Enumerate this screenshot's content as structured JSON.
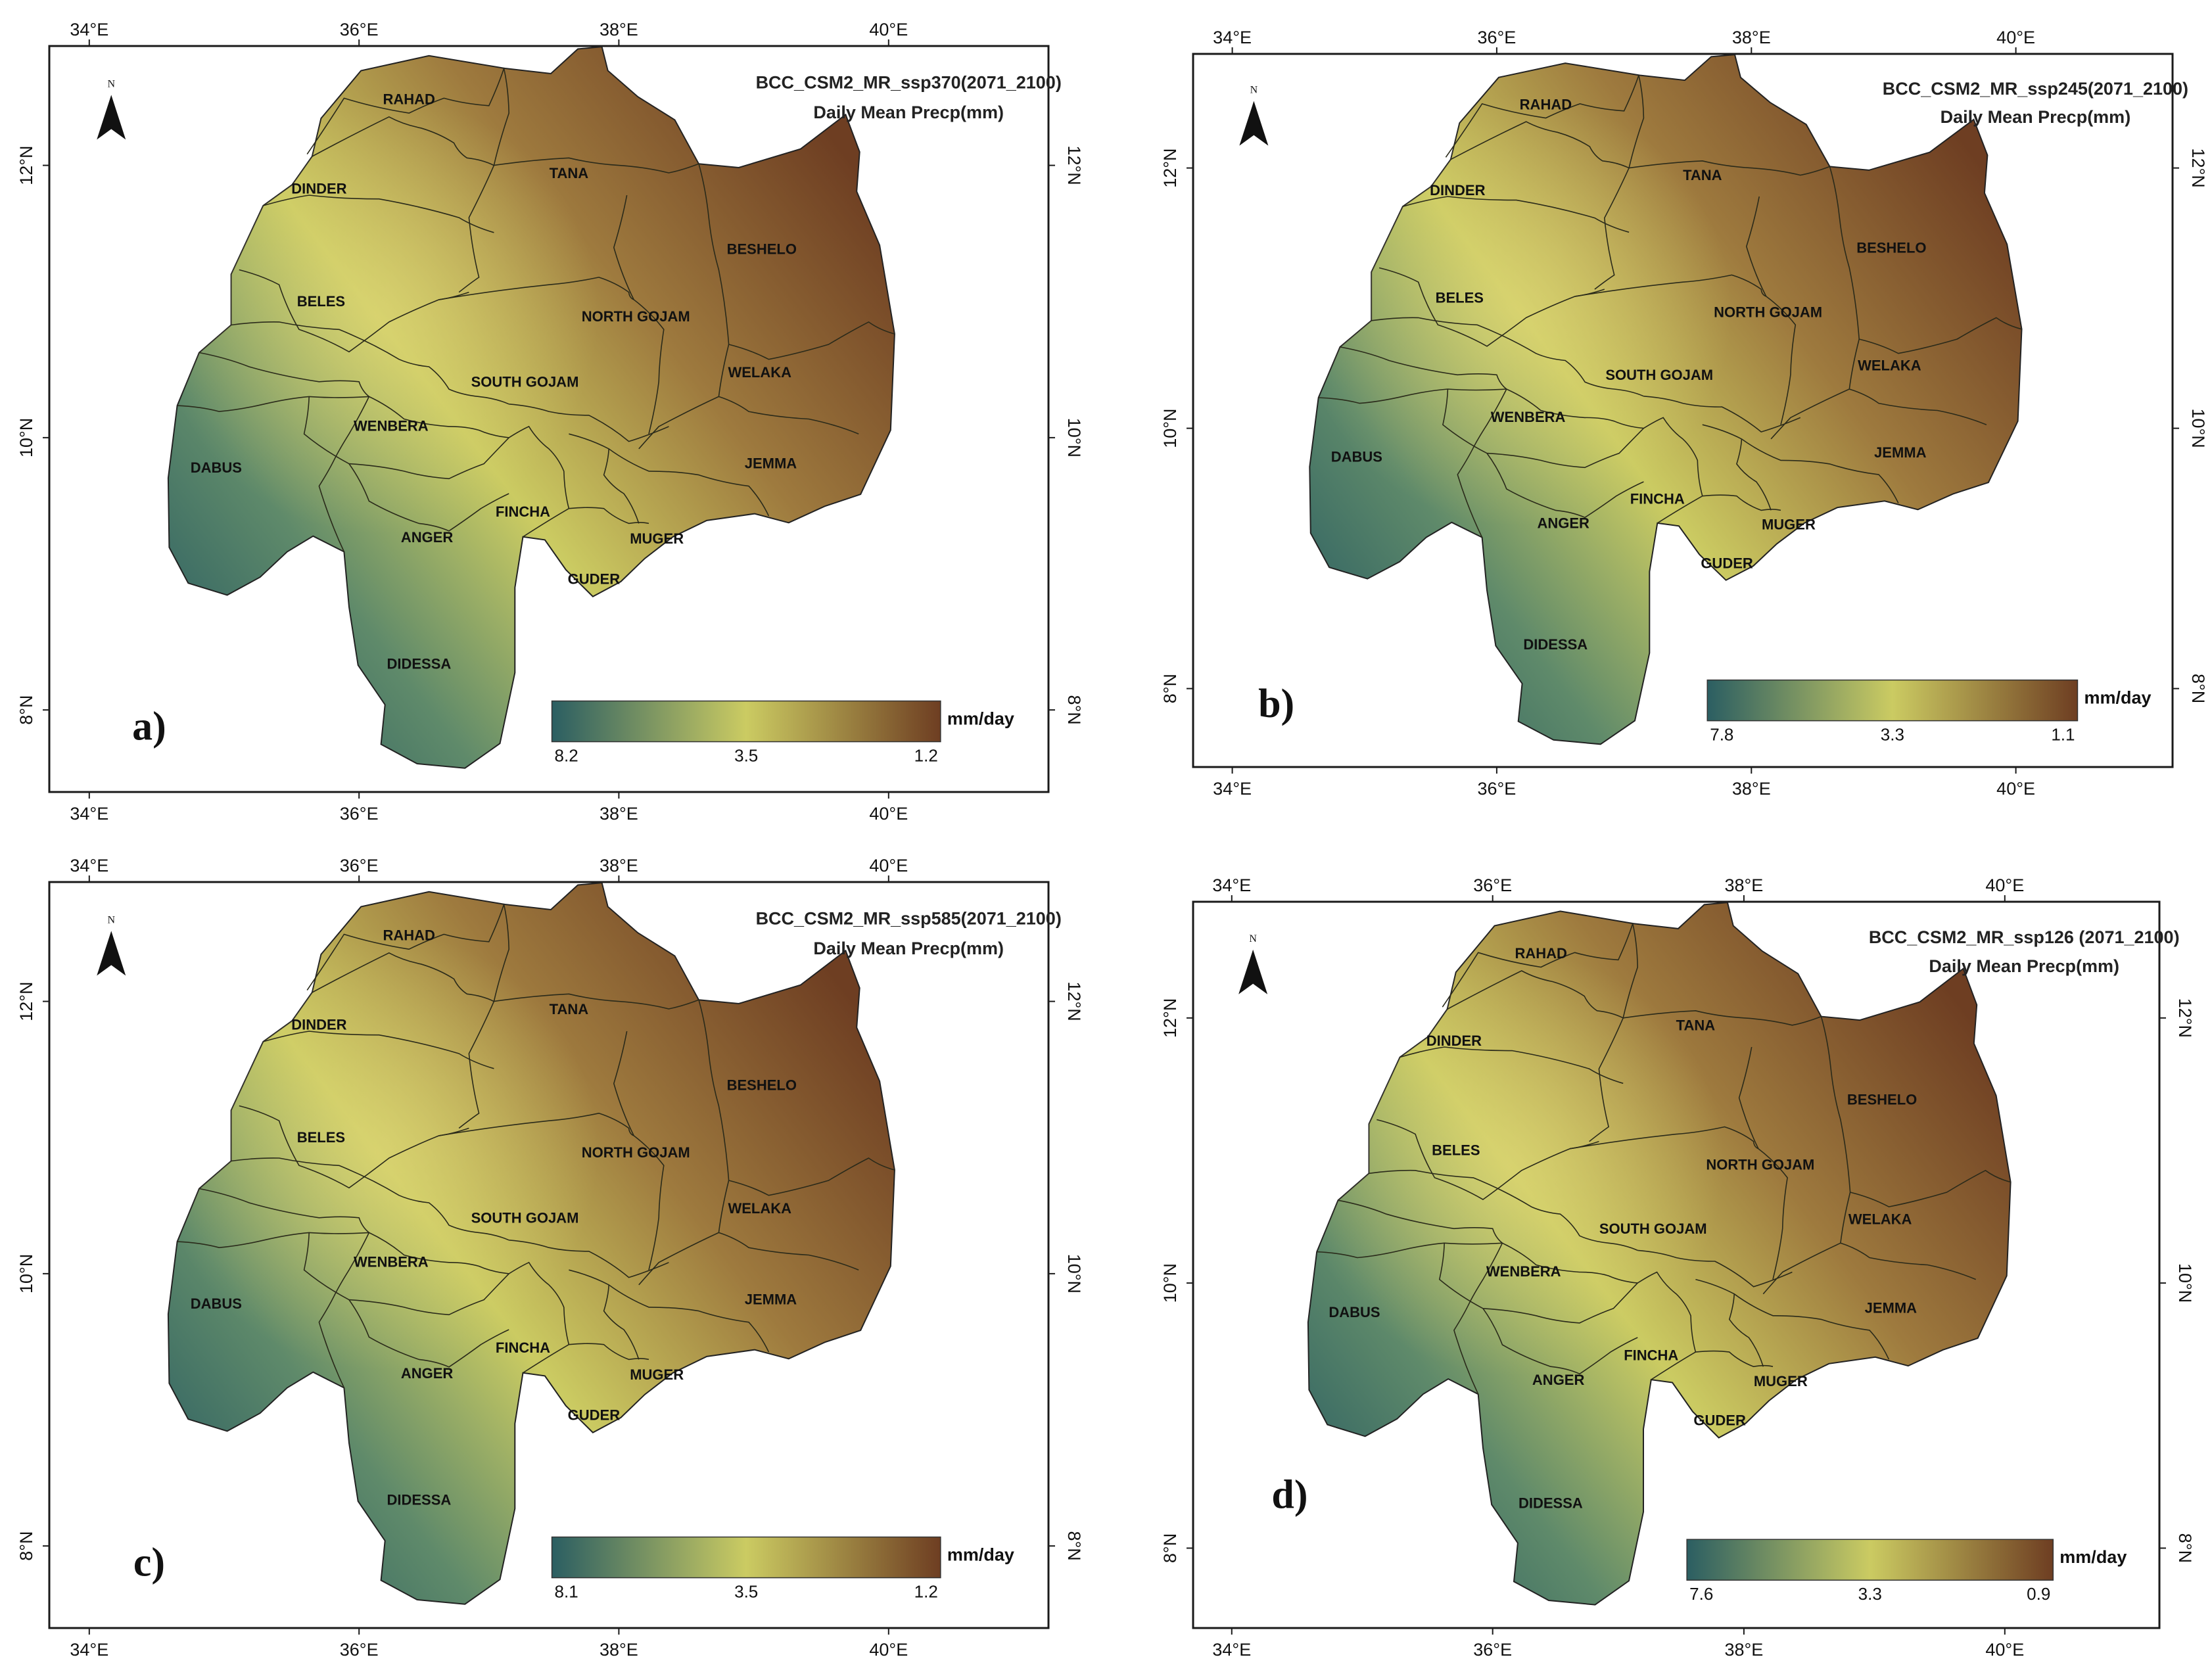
{
  "panels": [
    {
      "id": "a",
      "letter": "a)",
      "title_line1": "BCC_CSM2_MR_ssp370(2071_2100)",
      "title_line2": "Daily Mean Precp(mm)",
      "legend": {
        "min_label": "8.2",
        "mid_label": "3.5",
        "max_label": "1.2",
        "unit": "mm/day"
      },
      "ticks_lon": [
        "34°E",
        "36°E",
        "38°E",
        "40°E"
      ],
      "ticks_lat": [
        "12°N",
        "10°N",
        "8°N"
      ],
      "north_label": "N"
    },
    {
      "id": "b",
      "letter": "b)",
      "title_line1": "BCC_CSM2_MR_ssp245(2071_2100)",
      "title_line2": "Daily Mean Precp(mm)",
      "legend": {
        "min_label": "7.8",
        "mid_label": "3.3",
        "max_label": "1.1",
        "unit": "mm/day"
      },
      "ticks_lon": [
        "34°E",
        "36°E",
        "38°E",
        "40°E"
      ],
      "ticks_lat": [
        "12°N",
        "10°N",
        "8°N"
      ],
      "north_label": "N"
    },
    {
      "id": "c",
      "letter": "c)",
      "title_line1": "BCC_CSM2_MR_ssp585(2071_2100)",
      "title_line2": "Daily Mean Precp(mm)",
      "legend": {
        "min_label": "8.1",
        "mid_label": "3.5",
        "max_label": "1.2",
        "unit": "mm/day"
      },
      "ticks_lon": [
        "34°E",
        "36°E",
        "38°E",
        "40°E"
      ],
      "ticks_lat": [
        "12°N",
        "10°N",
        "8°N"
      ],
      "north_label": "N"
    },
    {
      "id": "d",
      "letter": "d)",
      "title_line1": "BCC_CSM2_MR_ssp126 (2071_2100)",
      "title_line2": "Daily Mean Precp(mm)",
      "legend": {
        "min_label": "7.6",
        "mid_label": "3.3",
        "max_label": "0.9",
        "unit": "mm/day"
      },
      "ticks_lon": [
        "34°E",
        "36°E",
        "38°E",
        "40°E"
      ],
      "ticks_lat": [
        "12°N",
        "10°N",
        "8°N"
      ],
      "north_label": "N"
    }
  ],
  "subbasins": [
    "RAHAD",
    "DINDER",
    "TANA",
    "BESHELO",
    "BELES",
    "NORTH GOJAM",
    "SOUTH GOJAM",
    "WELAKA",
    "WENBERA",
    "DABUS",
    "JEMMA",
    "FINCHA",
    "ANGER",
    "MUGER",
    "GUDER",
    "DIDESSA"
  ],
  "colors": {
    "wet": "#2b5e62",
    "mid": "#cbcb62",
    "dry": "#6e3e22",
    "frame": "#1a1a1a",
    "boundary": "#2a2a1a"
  }
}
